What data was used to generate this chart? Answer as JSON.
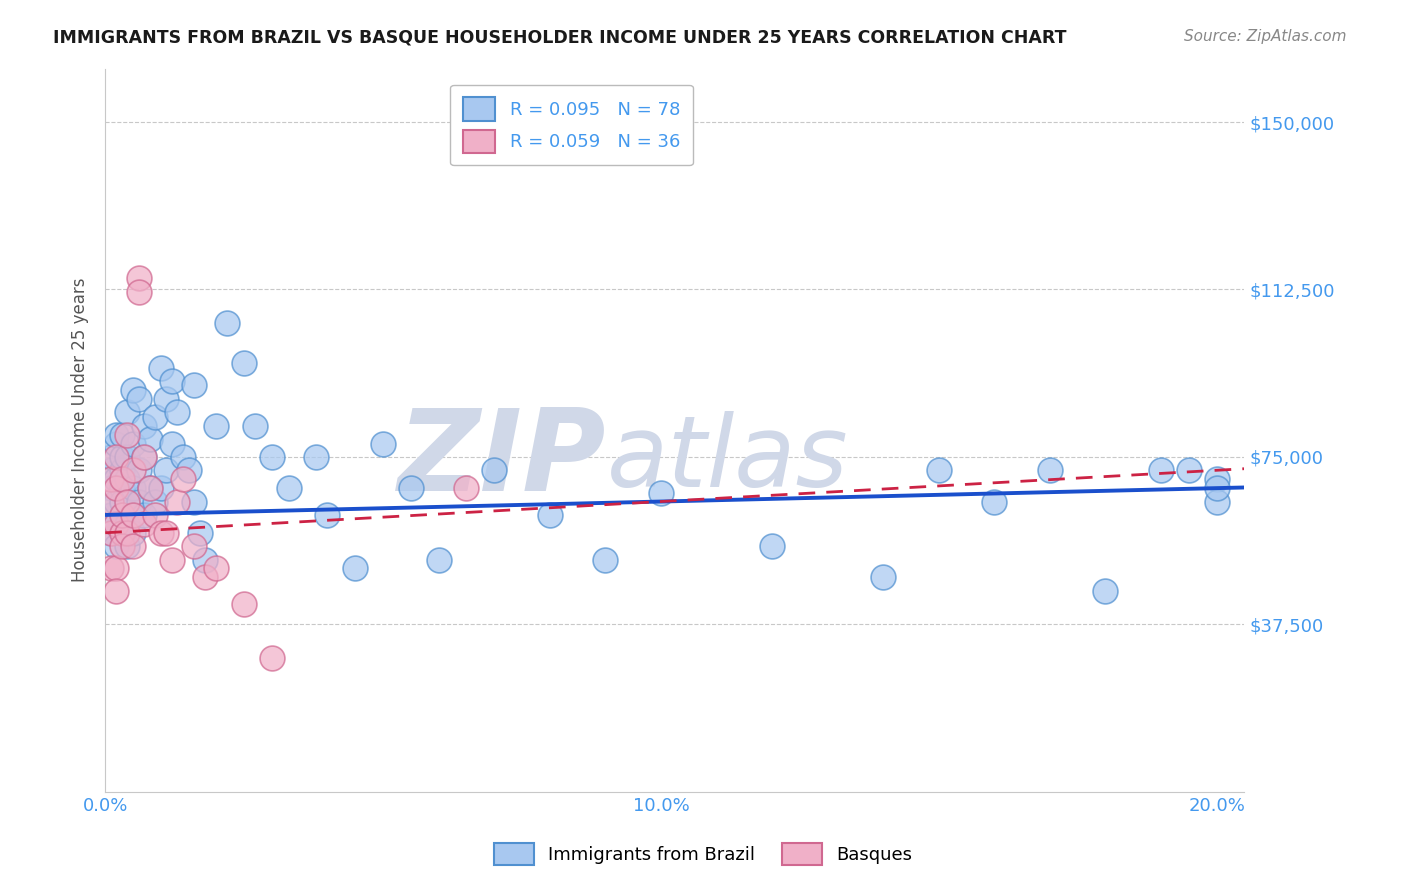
{
  "title": "IMMIGRANTS FROM BRAZIL VS BASQUE HOUSEHOLDER INCOME UNDER 25 YEARS CORRELATION CHART",
  "source": "Source: ZipAtlas.com",
  "ylabel": "Householder Income Under 25 years",
  "xlim": [
    0.0,
    0.205
  ],
  "ylim": [
    0,
    162000
  ],
  "yticks": [
    0,
    37500,
    75000,
    112500,
    150000
  ],
  "ytick_labels": [
    "",
    "$37,500",
    "$75,000",
    "$112,500",
    "$150,000"
  ],
  "xticks": [
    0.0,
    0.05,
    0.1,
    0.15,
    0.2
  ],
  "xtick_labels": [
    "0.0%",
    "",
    "10.0%",
    "",
    "20.0%"
  ],
  "R_brazil": "R = 0.095",
  "N_brazil": "N = 78",
  "R_basque": "R = 0.059",
  "N_basque": "N = 36",
  "blue_fill": "#a8c8f0",
  "blue_edge": "#5090d0",
  "pink_fill": "#f0b0c8",
  "pink_edge": "#d06890",
  "trend_blue": "#1a4fcc",
  "trend_pink": "#cc2244",
  "label_color": "#4499ee",
  "watermark_color": "#d0d8e8",
  "brazil_x": [
    0.001,
    0.001,
    0.001,
    0.001,
    0.001,
    0.002,
    0.002,
    0.002,
    0.002,
    0.002,
    0.002,
    0.003,
    0.003,
    0.003,
    0.003,
    0.003,
    0.003,
    0.003,
    0.004,
    0.004,
    0.004,
    0.004,
    0.004,
    0.004,
    0.005,
    0.005,
    0.005,
    0.005,
    0.006,
    0.006,
    0.006,
    0.007,
    0.007,
    0.007,
    0.008,
    0.008,
    0.009,
    0.009,
    0.01,
    0.01,
    0.011,
    0.011,
    0.012,
    0.012,
    0.013,
    0.014,
    0.015,
    0.016,
    0.016,
    0.017,
    0.018,
    0.02,
    0.022,
    0.025,
    0.027,
    0.03,
    0.033,
    0.038,
    0.04,
    0.045,
    0.05,
    0.055,
    0.06,
    0.07,
    0.08,
    0.09,
    0.1,
    0.12,
    0.14,
    0.15,
    0.16,
    0.17,
    0.18,
    0.19,
    0.195,
    0.2,
    0.2,
    0.2
  ],
  "brazil_y": [
    62000,
    72000,
    58000,
    68000,
    75000,
    65000,
    70000,
    78000,
    60000,
    55000,
    80000,
    72000,
    68000,
    75000,
    62000,
    58000,
    80000,
    65000,
    85000,
    70000,
    75000,
    60000,
    55000,
    65000,
    90000,
    78000,
    68000,
    58000,
    88000,
    72000,
    65000,
    82000,
    75000,
    62000,
    79000,
    68000,
    84000,
    65000,
    95000,
    68000,
    88000,
    72000,
    92000,
    78000,
    85000,
    75000,
    72000,
    91000,
    65000,
    58000,
    52000,
    82000,
    105000,
    96000,
    82000,
    75000,
    68000,
    75000,
    62000,
    50000,
    78000,
    68000,
    52000,
    72000,
    62000,
    52000,
    67000,
    55000,
    48000,
    72000,
    65000,
    72000,
    45000,
    72000,
    72000,
    70000,
    65000,
    68000
  ],
  "basque_x": [
    0.001,
    0.001,
    0.001,
    0.001,
    0.002,
    0.002,
    0.002,
    0.002,
    0.002,
    0.003,
    0.003,
    0.003,
    0.003,
    0.004,
    0.004,
    0.004,
    0.005,
    0.005,
    0.005,
    0.006,
    0.006,
    0.007,
    0.007,
    0.008,
    0.009,
    0.01,
    0.011,
    0.012,
    0.013,
    0.014,
    0.016,
    0.018,
    0.02,
    0.025,
    0.03,
    0.065
  ],
  "basque_y": [
    65000,
    58000,
    50000,
    70000,
    75000,
    60000,
    50000,
    45000,
    68000,
    70000,
    58000,
    62000,
    55000,
    80000,
    58000,
    65000,
    72000,
    62000,
    55000,
    115000,
    112000,
    75000,
    60000,
    68000,
    62000,
    58000,
    58000,
    52000,
    65000,
    70000,
    55000,
    48000,
    50000,
    42000,
    30000,
    68000
  ]
}
